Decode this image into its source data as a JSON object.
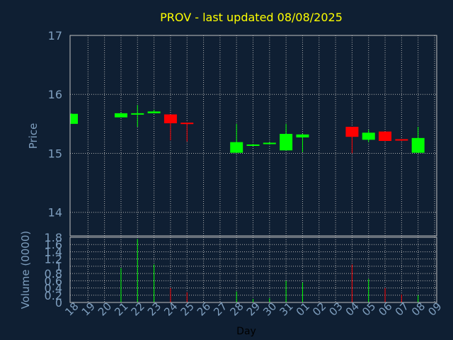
{
  "chart_data": [
    {
      "type": "candlestick",
      "title": "PROV - last updated 08/08/2025",
      "ylabel": "Price",
      "ylim": [
        13.6,
        17
      ],
      "yticks": [
        14,
        15,
        16,
        17
      ],
      "grid": true,
      "up_color": "#00ff00",
      "down_color": "#ff0000",
      "candles": [
        {
          "day": "18",
          "open": 15.5,
          "high": 15.68,
          "low": 15.5,
          "close": 15.67
        },
        {
          "day": "21",
          "open": 15.61,
          "high": 15.69,
          "low": 15.61,
          "close": 15.68
        },
        {
          "day": "22",
          "open": 15.67,
          "high": 15.82,
          "low": 15.45,
          "close": 15.68
        },
        {
          "day": "23",
          "open": 15.68,
          "high": 15.74,
          "low": 15.68,
          "close": 15.71
        },
        {
          "day": "24",
          "open": 15.66,
          "high": 15.66,
          "low": 15.22,
          "close": 15.51
        },
        {
          "day": "25",
          "open": 15.52,
          "high": 15.52,
          "low": 15.2,
          "close": 15.5
        },
        {
          "day": "28",
          "open": 15.01,
          "high": 15.5,
          "low": 15.01,
          "close": 15.19
        },
        {
          "day": "29",
          "open": 15.13,
          "high": 15.16,
          "low": 15.13,
          "close": 15.15
        },
        {
          "day": "30",
          "open": 15.17,
          "high": 15.19,
          "low": 15.17,
          "close": 15.18
        },
        {
          "day": "31",
          "open": 15.05,
          "high": 15.5,
          "low": 15.05,
          "close": 15.33
        },
        {
          "day": "01",
          "open": 15.27,
          "high": 15.33,
          "low": 15.02,
          "close": 15.32
        },
        {
          "day": "04",
          "open": 15.45,
          "high": 15.45,
          "low": 15.0,
          "close": 15.28
        },
        {
          "day": "05",
          "open": 15.23,
          "high": 15.4,
          "low": 15.19,
          "close": 15.35
        },
        {
          "day": "06",
          "open": 15.37,
          "high": 15.37,
          "low": 15.21,
          "close": 15.21
        },
        {
          "day": "07",
          "open": 15.24,
          "high": 15.24,
          "low": 15.21,
          "close": 15.22
        },
        {
          "day": "08",
          "open": 15.01,
          "high": 15.45,
          "low": 15.01,
          "close": 15.26
        }
      ]
    },
    {
      "type": "bar",
      "ylabel": "Volume (0000)",
      "xlabel": "Day",
      "ylim": [
        0,
        1.8
      ],
      "yticks": [
        "0",
        "0.2",
        "0.4",
        "0.6",
        "0.8",
        "1",
        "1.2",
        "1.4",
        "1.6",
        "1.8"
      ],
      "categories": [
        "18",
        "19",
        "20",
        "21",
        "22",
        "23",
        "24",
        "25",
        "26",
        "27",
        "28",
        "29",
        "30",
        "31",
        "01",
        "02",
        "03",
        "04",
        "05",
        "06",
        "07",
        "08",
        "09"
      ],
      "values": [
        0,
        0,
        0,
        0.95,
        1.75,
        1.05,
        0.4,
        0.28,
        0,
        0,
        0.3,
        0.1,
        0.12,
        0.6,
        0.55,
        0,
        0,
        1.05,
        0.65,
        0.4,
        0.22,
        0.2,
        0
      ],
      "bar_colors": [
        "",
        "",
        "",
        "#00ff00",
        "#00ff00",
        "#00ff00",
        "#ff0000",
        "#ff0000",
        "",
        "",
        "#00ff00",
        "#00ff00",
        "#00ff00",
        "#00ff00",
        "#00ff00",
        "",
        "",
        "#ff0000",
        "#00ff00",
        "#ff0000",
        "#ff0000",
        "#00ff00",
        ""
      ],
      "grid": true
    }
  ],
  "colors": {
    "background": "#0f1f33",
    "title": "#ffff00",
    "axis_text": "#7f9fbf",
    "frame": "#c0c0c0",
    "grid": "#b0b0b0"
  }
}
